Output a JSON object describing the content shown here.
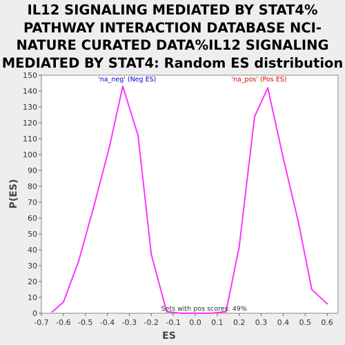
{
  "title_lines": [
    "IL12 SIGNALING MEDIATED BY STAT4%",
    "PATHWAY INTERACTION DATABASE NCI-",
    "NATURE CURATED DATA%IL12 SIGNALING",
    "MEDIATED BY STAT4: Random ES distribution"
  ],
  "chart_data": {
    "type": "line",
    "title": "IL12 SIGNALING MEDIATED BY STAT4% PATHWAY INTERACTION DATABASE NCI-NATURE CURATED DATA%IL12 SIGNALING MEDIATED BY STAT4: Random ES distribution",
    "xlabel": "ES",
    "ylabel": "P(ES)",
    "xlim": [
      -0.7,
      0.65
    ],
    "ylim": [
      0,
      150
    ],
    "xticks": [
      "-0.7",
      "-0.6",
      "-0.5",
      "-0.4",
      "-0.3",
      "-0.2",
      "-0.1",
      "0.0",
      "0.1",
      "0.2",
      "0.3",
      "0.4",
      "0.5",
      "0.6"
    ],
    "yticks": [
      "0",
      "10",
      "20",
      "30",
      "40",
      "50",
      "60",
      "70",
      "80",
      "90",
      "100",
      "110",
      "120",
      "130",
      "140",
      "150"
    ],
    "line_color": "#ff33ff",
    "series": [
      {
        "x": [
          -0.65,
          -0.6,
          -0.53,
          -0.46,
          -0.39,
          -0.33,
          -0.26,
          -0.2,
          -0.13,
          -0.06,
          0.0,
          0.07,
          0.14,
          0.2,
          0.27,
          0.33,
          0.4,
          0.47,
          0.53,
          0.6
        ],
        "y": [
          1,
          7,
          33,
          68,
          105,
          143,
          112,
          37,
          1,
          0,
          0,
          0,
          1,
          42,
          124,
          142,
          98,
          57,
          15,
          6
        ]
      }
    ],
    "annotations": [
      {
        "text": "'na_neg' (Neg ES)",
        "x": -0.31,
        "y": 146,
        "color": "#0000cc"
      },
      {
        "text": "'na_pos' (Pos ES)",
        "x": 0.29,
        "y": 146,
        "color": "#cc0000"
      },
      {
        "text": "Sets with pos scores: 49%",
        "x": 0.04,
        "y": 1.5,
        "color": "#333333"
      }
    ]
  }
}
